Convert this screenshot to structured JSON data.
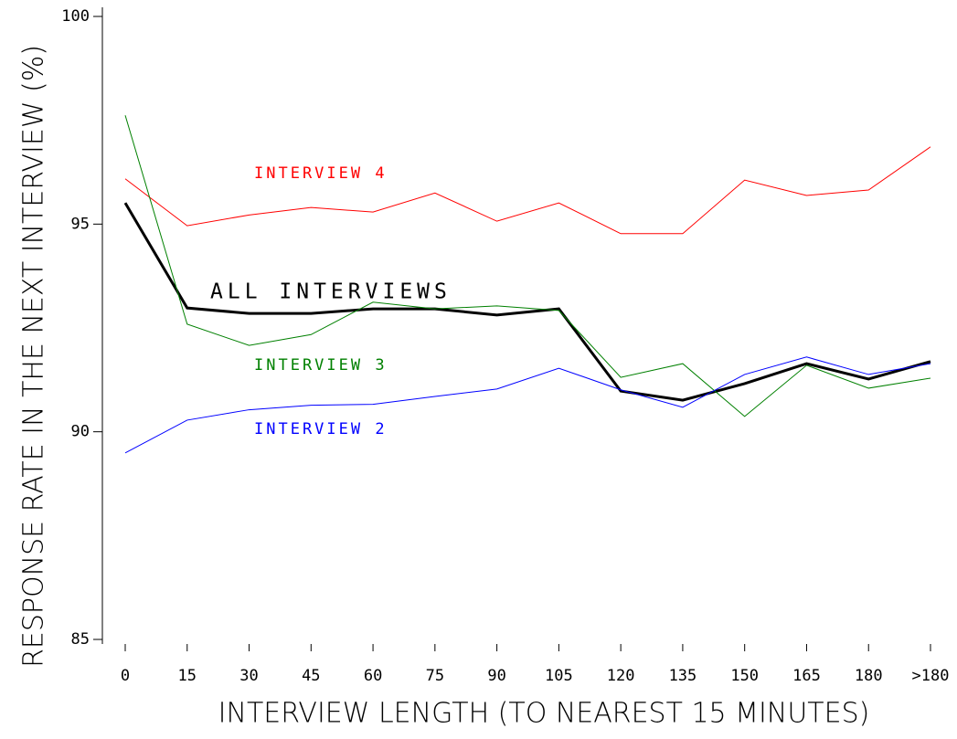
{
  "chart_data": {
    "type": "line",
    "x_label": "INTERVIEW LENGTH (TO NEAREST 15 MINUTES)",
    "y_label": "RESPONSE RATE IN THE NEXT INTERVIEW (%)",
    "categories": [
      "0",
      "15",
      "30",
      "45",
      "60",
      "75",
      "90",
      "105",
      "120",
      "135",
      "150",
      "165",
      "180",
      ">180"
    ],
    "series": [
      {
        "name": "INTERVIEW 4",
        "color": "#ff0000",
        "width": 1,
        "values": [
          96.09,
          94.96,
          95.22,
          95.4,
          95.29,
          95.75,
          95.07,
          95.51,
          94.77,
          94.77,
          96.06,
          95.69,
          95.82,
          96.86
        ]
      },
      {
        "name": "ALL INTERVIEWS",
        "color": "#000000",
        "width": 3,
        "values": [
          95.51,
          92.98,
          92.85,
          92.85,
          92.96,
          92.96,
          92.81,
          92.96,
          90.98,
          90.76,
          91.16,
          91.64,
          91.27,
          91.69
        ]
      },
      {
        "name": "INTERVIEW 3",
        "color": "#008000",
        "width": 1,
        "values": [
          97.62,
          92.59,
          92.08,
          92.34,
          93.12,
          92.96,
          93.03,
          92.92,
          91.31,
          91.64,
          90.37,
          91.6,
          91.05,
          91.29
        ]
      },
      {
        "name": "INTERVIEW 2",
        "color": "#0000ff",
        "width": 1,
        "values": [
          89.49,
          90.28,
          90.53,
          90.64,
          90.66,
          90.85,
          91.03,
          91.53,
          91.01,
          90.59,
          91.38,
          91.8,
          91.38,
          91.64
        ]
      }
    ],
    "ylim": [
      85,
      100
    ],
    "yticks": [
      85,
      90,
      95,
      100
    ]
  }
}
